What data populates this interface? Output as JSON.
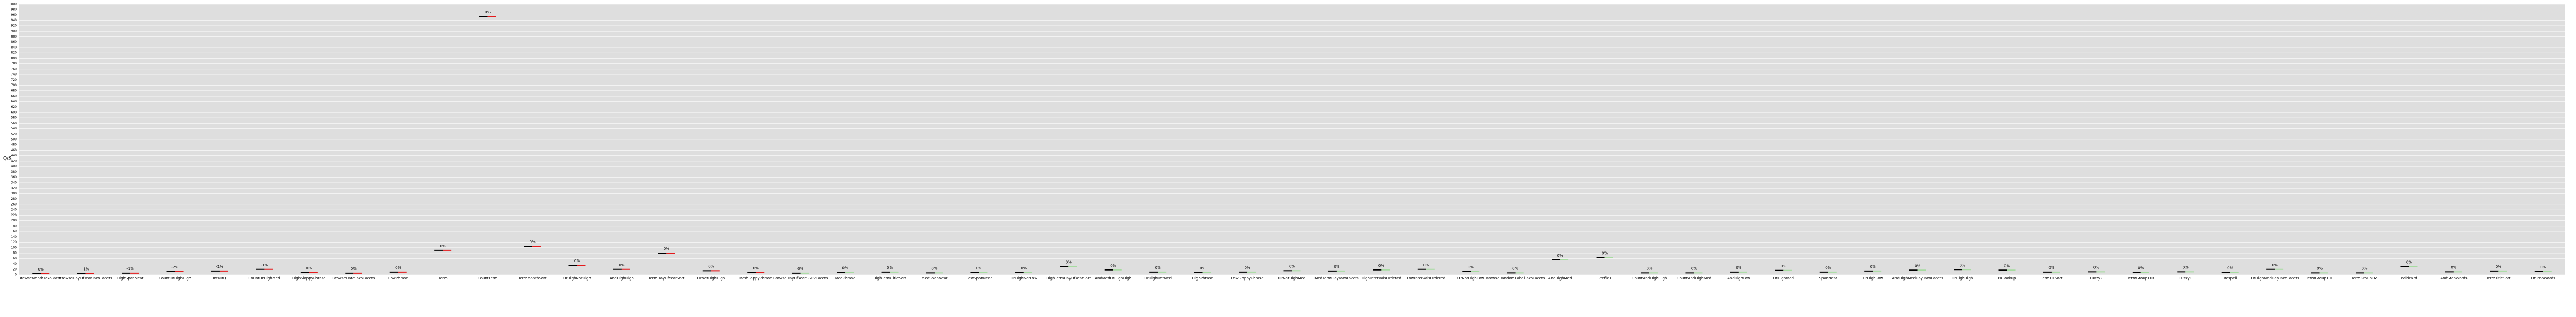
{
  "chart_data": {
    "type": "benchmark",
    "y_label": "Q/S",
    "ylim": [
      0,
      1000
    ],
    "yticks": [
      0,
      20,
      40,
      60,
      80,
      100,
      120,
      140,
      160,
      180,
      200,
      220,
      240,
      260,
      280,
      300,
      320,
      340,
      360,
      380,
      400,
      420,
      440,
      460,
      480,
      500,
      520,
      540,
      560,
      580,
      600,
      620,
      640,
      660,
      680,
      700,
      720,
      740,
      760,
      780,
      800,
      820,
      840,
      860,
      880,
      900,
      920,
      940,
      960,
      980,
      1000
    ],
    "grid": true,
    "categories": [
      "BrowseMonthTaxoFacets",
      "BrowseDayOfYearTaxoFacets",
      "HighSpanNear",
      "CountOrHighHigh",
      "IntNRQ",
      "CountOrHighMed",
      "HighSloppyPhrase",
      "BrowseDateTaxoFacets",
      "LowPhrase",
      "Term",
      "CountTerm",
      "TermMonthSort",
      "OrHighNotHigh",
      "AndHighHigh",
      "TermDayOfYearSort",
      "OrNotHighHigh",
      "MedSloppyPhrase",
      "BrowseDayOfYearSSDVFacets",
      "MedPhrase",
      "HighTermTitleSort",
      "MedSpanNear",
      "LowSpanNear",
      "OrHighNotLow",
      "HighTermDayOfYearSort",
      "AndMedOrHighHigh",
      "OrHighNotMed",
      "HighPhrase",
      "LowSloppyPhrase",
      "OrNotHighMed",
      "MedTermDayTaxoFacets",
      "HighIntervalsOrdered",
      "LowIntervalsOrdered",
      "OrNotHighLow",
      "BrowseRandomLabelTaxoFacets",
      "AndHighMed",
      "Prefix3",
      "CountAndHighHigh",
      "CountAndHighMed",
      "AndHighLow",
      "OrHighMed",
      "SpanNear",
      "OrHighLow",
      "AndHighMedDayTaxoFacets",
      "OrHighHigh",
      "PKLookup",
      "TermDTSort",
      "Fuzzy2",
      "TermGroup10K",
      "Fuzzy1",
      "Respell",
      "OrHighMedDayTaxoFacets",
      "TermGroup100",
      "TermGroup1M",
      "Wildcard",
      "AndStopWords",
      "TermTitleSort",
      "OrStopWords"
    ],
    "series": [
      {
        "color": "#000000",
        "values": [
          4,
          5,
          6,
          12,
          14,
          20,
          8,
          6,
          10,
          90,
          955,
          105,
          35,
          20,
          80,
          15,
          8,
          6,
          9,
          10,
          7,
          8,
          8,
          30,
          18,
          10,
          8,
          10,
          15,
          14,
          18,
          20,
          12,
          7,
          55,
          63,
          7,
          7,
          10,
          16,
          10,
          14,
          17,
          19,
          17,
          10,
          11,
          9,
          11,
          9,
          20,
          7,
          7,
          30,
          11,
          14,
          12
        ]
      },
      {
        "colors": [
          "#e41a1c",
          "#e41a1c",
          "#e41a1c",
          "#e41a1c",
          "#e41a1c",
          "#e41a1c",
          "#e41a1c",
          "#e41a1c",
          "#e41a1c",
          "#e41a1c",
          "#e41a1c",
          "#e41a1c",
          "#e41a1c",
          "#e41a1c",
          "#e41a1c",
          "#e41a1c",
          "#e41a1c",
          "#a6dba0",
          "#a6dba0",
          "#a6dba0",
          "#a6dba0",
          "#a6dba0",
          "#a6dba0",
          "#a6dba0",
          "#a6dba0",
          "#a6dba0",
          "#a6dba0",
          "#a6dba0",
          "#a6dba0",
          "#a6dba0",
          "#a6dba0",
          "#a6dba0",
          "#a6dba0",
          "#a6dba0",
          "#a6dba0",
          "#a6dba0",
          "#a6dba0",
          "#a6dba0",
          "#a6dba0",
          "#a6dba0",
          "#a6dba0",
          "#a6dba0",
          "#a6dba0",
          "#a6dba0",
          "#a6dba0",
          "#a6dba0",
          "#a6dba0",
          "#a6dba0",
          "#a6dba0",
          "#a6dba0",
          "#a6dba0",
          "#a6dba0",
          "#a6dba0",
          "#a6dba0",
          "#a6dba0",
          "#a6dba0",
          "#a6dba0"
        ],
        "values": [
          4,
          5,
          6,
          12,
          14,
          20,
          8,
          6,
          10,
          90,
          955,
          105,
          35,
          20,
          80,
          15,
          8,
          6,
          9,
          10,
          7,
          8,
          8,
          30,
          18,
          10,
          8,
          10,
          15,
          14,
          18,
          20,
          12,
          7,
          55,
          63,
          7,
          7,
          10,
          16,
          10,
          14,
          17,
          19,
          17,
          10,
          11,
          9,
          11,
          9,
          20,
          7,
          7,
          30,
          11,
          14,
          12
        ]
      }
    ],
    "change_labels": [
      "0%",
      "-1%",
      "-1%",
      "-2%",
      "-1%",
      "-1%",
      "0%",
      "0%",
      "0%",
      "0%",
      "0%",
      "0%",
      "0%",
      "0%",
      "0%",
      "0%",
      "0%",
      "0%",
      "0%",
      "0%",
      "0%",
      "0%",
      "0%",
      "0%",
      "0%",
      "0%",
      "0%",
      "0%",
      "0%",
      "0%",
      "0%",
      "0%",
      "0%",
      "0%",
      "0%",
      "0%",
      "0%",
      "0%",
      "0%",
      "0%",
      "0%",
      "0%",
      "0%",
      "0%",
      "0%",
      "0%",
      "0%",
      "0%",
      "0%",
      "0%",
      "0%",
      "0%",
      "0%",
      "0%",
      "0%",
      "0%",
      "0%"
    ]
  }
}
